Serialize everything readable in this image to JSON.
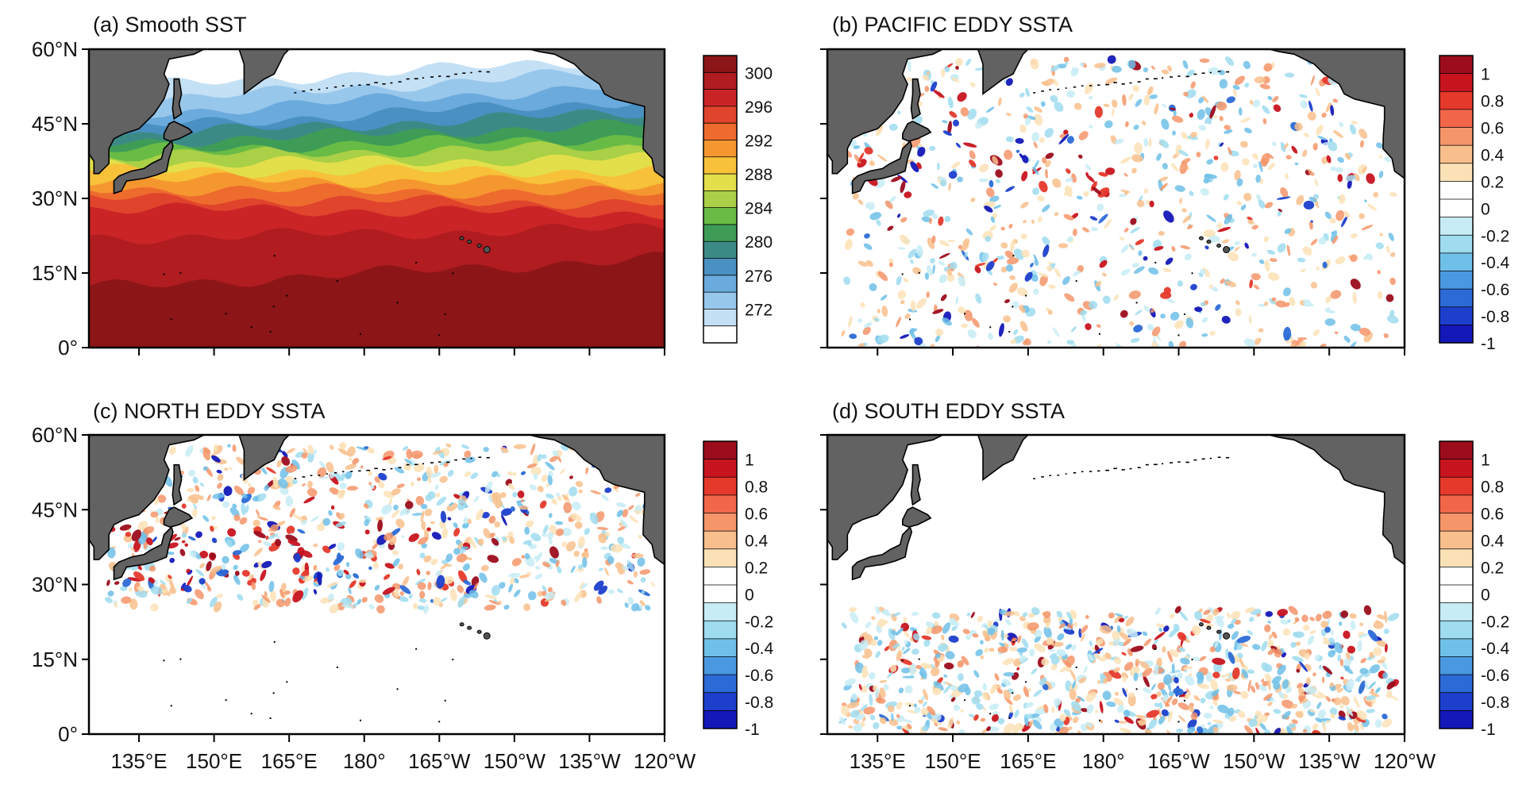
{
  "panels": [
    {
      "id": "a",
      "title": "(a)  Smooth SST",
      "field": "sst"
    },
    {
      "id": "b",
      "title": "(b)  PACIFIC EDDY SSTA",
      "field": "eddy",
      "lat_min": 0,
      "lat_max": 60
    },
    {
      "id": "c",
      "title": "(c)  NORTH EDDY SSTA",
      "field": "eddy",
      "lat_min": 25,
      "lat_max": 60
    },
    {
      "id": "d",
      "title": "(d)  SOUTH EDDY SSTA",
      "field": "eddy",
      "lat_min": 0,
      "lat_max": 25
    }
  ],
  "lat_ticks": [
    "60°N",
    "45°N",
    "30°N",
    "15°N",
    "0°"
  ],
  "lon_ticks": [
    "135°E",
    "150°E",
    "165°E",
    "180°",
    "165°W",
    "150°W",
    "135°W",
    "120°W"
  ],
  "map_extent": {
    "lon_min": 125,
    "lon_max": 240,
    "lat_min": 0,
    "lat_max": 60
  },
  "sst_colorbar": {
    "labels": [
      "300",
      "296",
      "292",
      "288",
      "284",
      "280",
      "276",
      "272"
    ],
    "colors": [
      "#8c1517",
      "#b01c20",
      "#cb2427",
      "#e0442c",
      "#ee6b2e",
      "#f5972f",
      "#f7c139",
      "#e3df4a",
      "#a9d046",
      "#68bb45",
      "#3e9c57",
      "#3c8a86",
      "#4a90c2",
      "#6aaadc",
      "#98c7ec",
      "#c4e0f5",
      "#ffffff"
    ]
  },
  "ssta_colorbar": {
    "labels": [
      "1",
      "0.8",
      "0.6",
      "0.4",
      "0.2",
      "0",
      "-0.2",
      "-0.4",
      "-0.6",
      "-0.8",
      "-1"
    ],
    "colors": [
      "#9c0d1c",
      "#c8141f",
      "#e5392b",
      "#f2664a",
      "#f5956a",
      "#f8bf8c",
      "#fbe2b6",
      "#ffffff",
      "#ffffff",
      "#c7ecf5",
      "#9fdcef",
      "#6fc0e8",
      "#4a98e0",
      "#2c6ad6",
      "#1c3fcc",
      "#1418b8"
    ]
  },
  "colors": {
    "land": "#626262",
    "coast": "#000000",
    "frame": "#000000"
  }
}
